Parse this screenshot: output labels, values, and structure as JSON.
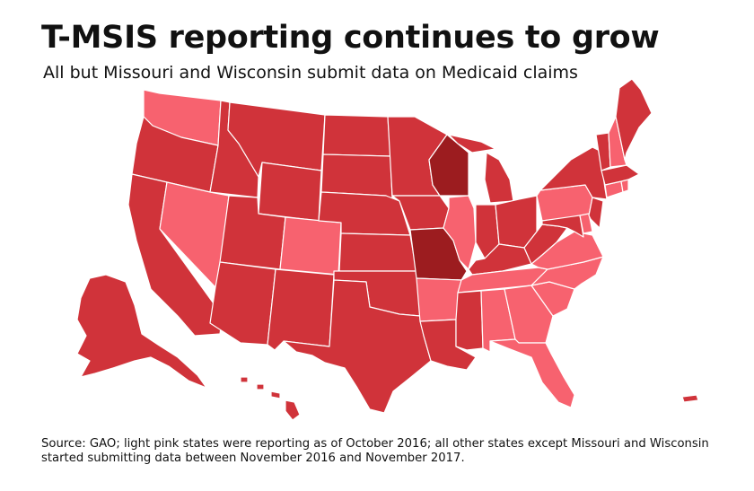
{
  "header": {
    "title": "T-MSIS reporting continues to grow",
    "subtitle": "All but Missouri and Wisconsin submit data on Medicaid claims"
  },
  "legend_colors": {
    "reporting_as_of_oct_2016": "#f7626f",
    "started_nov_2016_to_nov_2017": "#d0333a",
    "not_submitting": "#9c1c1f"
  },
  "map": {
    "states": [
      {
        "name": "Washington",
        "status": "reporting_as_of_oct_2016"
      },
      {
        "name": "Oregon",
        "status": "started_nov_2016_to_nov_2017"
      },
      {
        "name": "California",
        "status": "started_nov_2016_to_nov_2017"
      },
      {
        "name": "Idaho",
        "status": "started_nov_2016_to_nov_2017"
      },
      {
        "name": "Nevada",
        "status": "reporting_as_of_oct_2016"
      },
      {
        "name": "Montana",
        "status": "started_nov_2016_to_nov_2017"
      },
      {
        "name": "Wyoming",
        "status": "started_nov_2016_to_nov_2017"
      },
      {
        "name": "Utah",
        "status": "started_nov_2016_to_nov_2017"
      },
      {
        "name": "Colorado",
        "status": "reporting_as_of_oct_2016"
      },
      {
        "name": "Arizona",
        "status": "started_nov_2016_to_nov_2017"
      },
      {
        "name": "New Mexico",
        "status": "started_nov_2016_to_nov_2017"
      },
      {
        "name": "North Dakota",
        "status": "started_nov_2016_to_nov_2017"
      },
      {
        "name": "South Dakota",
        "status": "started_nov_2016_to_nov_2017"
      },
      {
        "name": "Nebraska",
        "status": "started_nov_2016_to_nov_2017"
      },
      {
        "name": "Kansas",
        "status": "started_nov_2016_to_nov_2017"
      },
      {
        "name": "Oklahoma",
        "status": "started_nov_2016_to_nov_2017"
      },
      {
        "name": "Texas",
        "status": "started_nov_2016_to_nov_2017"
      },
      {
        "name": "Minnesota",
        "status": "started_nov_2016_to_nov_2017"
      },
      {
        "name": "Iowa",
        "status": "started_nov_2016_to_nov_2017"
      },
      {
        "name": "Missouri",
        "status": "not_submitting"
      },
      {
        "name": "Arkansas",
        "status": "reporting_as_of_oct_2016"
      },
      {
        "name": "Louisiana",
        "status": "started_nov_2016_to_nov_2017"
      },
      {
        "name": "Wisconsin",
        "status": "not_submitting"
      },
      {
        "name": "Illinois",
        "status": "reporting_as_of_oct_2016"
      },
      {
        "name": "Michigan",
        "status": "started_nov_2016_to_nov_2017"
      },
      {
        "name": "Indiana",
        "status": "started_nov_2016_to_nov_2017"
      },
      {
        "name": "Ohio",
        "status": "started_nov_2016_to_nov_2017"
      },
      {
        "name": "Kentucky",
        "status": "started_nov_2016_to_nov_2017"
      },
      {
        "name": "Tennessee",
        "status": "reporting_as_of_oct_2016"
      },
      {
        "name": "Mississippi",
        "status": "started_nov_2016_to_nov_2017"
      },
      {
        "name": "Alabama",
        "status": "reporting_as_of_oct_2016"
      },
      {
        "name": "Georgia",
        "status": "reporting_as_of_oct_2016"
      },
      {
        "name": "Florida",
        "status": "reporting_as_of_oct_2016"
      },
      {
        "name": "South Carolina",
        "status": "reporting_as_of_oct_2016"
      },
      {
        "name": "North Carolina",
        "status": "reporting_as_of_oct_2016"
      },
      {
        "name": "Virginia",
        "status": "reporting_as_of_oct_2016"
      },
      {
        "name": "West Virginia",
        "status": "started_nov_2016_to_nov_2017"
      },
      {
        "name": "Pennsylvania",
        "status": "reporting_as_of_oct_2016"
      },
      {
        "name": "New York",
        "status": "started_nov_2016_to_nov_2017"
      },
      {
        "name": "Maryland",
        "status": "started_nov_2016_to_nov_2017"
      },
      {
        "name": "Delaware",
        "status": "reporting_as_of_oct_2016"
      },
      {
        "name": "New Jersey",
        "status": "started_nov_2016_to_nov_2017"
      },
      {
        "name": "Connecticut",
        "status": "reporting_as_of_oct_2016"
      },
      {
        "name": "Rhode Island",
        "status": "reporting_as_of_oct_2016"
      },
      {
        "name": "Massachusetts",
        "status": "started_nov_2016_to_nov_2017"
      },
      {
        "name": "Vermont",
        "status": "started_nov_2016_to_nov_2017"
      },
      {
        "name": "New Hampshire",
        "status": "reporting_as_of_oct_2016"
      },
      {
        "name": "Maine",
        "status": "started_nov_2016_to_nov_2017"
      },
      {
        "name": "Alaska",
        "status": "started_nov_2016_to_nov_2017"
      },
      {
        "name": "Hawaii",
        "status": "started_nov_2016_to_nov_2017"
      },
      {
        "name": "Puerto Rico",
        "status": "started_nov_2016_to_nov_2017"
      }
    ]
  },
  "footer": {
    "source": "Source: GAO; light pink states were reporting as of October 2016; all other states except Missouri and Wisconsin started submitting data between November 2016 and November 2017."
  }
}
